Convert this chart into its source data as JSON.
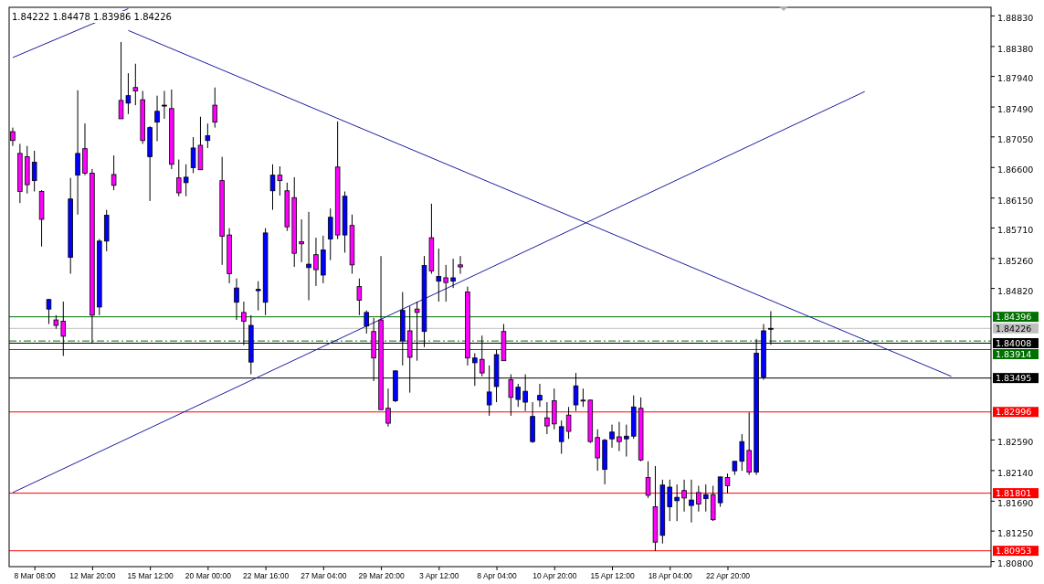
{
  "chart_data": {
    "type": "candlestick",
    "annotations": [
      "1.84222 1.84478 1.83986 1.84226"
    ],
    "categories": [
      null,
      null,
      null,
      "8 Mar 08:00",
      null,
      null,
      null,
      null,
      null,
      null,
      null,
      "12 Mar 20:00",
      null,
      null,
      null,
      null,
      null,
      null,
      null,
      "15 Mar 12:00",
      null,
      null,
      null,
      null,
      null,
      null,
      null,
      "20 Mar 00:00",
      null,
      null,
      null,
      null,
      null,
      null,
      null,
      "22 Mar 16:00",
      null,
      null,
      null,
      null,
      null,
      null,
      null,
      "27 Mar 04:00",
      null,
      null,
      null,
      null,
      null,
      null,
      null,
      "29 Mar 20:00",
      null,
      null,
      null,
      null,
      null,
      null,
      null,
      "3 Apr 12:00",
      null,
      null,
      null,
      null,
      null,
      null,
      null,
      "8 Apr 04:00",
      null,
      null,
      null,
      null,
      null,
      null,
      null,
      "10 Apr 20:00",
      null,
      null,
      null,
      null,
      null,
      null,
      null,
      "15 Apr 12:00",
      null,
      null,
      null,
      null,
      null,
      null,
      null,
      "18 Apr 04:00",
      null,
      null,
      null,
      null,
      null,
      null,
      null,
      "22 Apr 20:00",
      null,
      null,
      null,
      null,
      null,
      null,
      null,
      null,
      null,
      null,
      null,
      null,
      null,
      null,
      null,
      null,
      null,
      null,
      null,
      null,
      null,
      null,
      null,
      null,
      null,
      null,
      null,
      null,
      null,
      null,
      null,
      null,
      null,
      null,
      null,
      null
    ],
    "ylim": [
      1.8072,
      1.8895
    ],
    "yticks": [
      {
        "value": 1.8883,
        "label": "1.88830"
      },
      {
        "value": 1.8838,
        "label": "1.88380"
      },
      {
        "value": 1.8794,
        "label": "1.87940"
      },
      {
        "value": 1.8749,
        "label": "1.87490"
      },
      {
        "value": 1.8705,
        "label": "1.87050"
      },
      {
        "value": 1.866,
        "label": "1.86600"
      },
      {
        "value": 1.8615,
        "label": "1.86150"
      },
      {
        "value": 1.8571,
        "label": "1.85710"
      },
      {
        "value": 1.8526,
        "label": "1.85260"
      },
      {
        "value": 1.8482,
        "label": "1.84820"
      },
      {
        "value": 1.8259,
        "label": "1.82590"
      },
      {
        "value": 1.8214,
        "label": "1.82140"
      },
      {
        "value": 1.8169,
        "label": "1.81690"
      },
      {
        "value": 1.8125,
        "label": "1.81250"
      },
      {
        "value": 1.808,
        "label": "1.80800"
      }
    ],
    "ref_lines": [
      {
        "axis": "y",
        "value": 1.84396,
        "label": "1.84396",
        "color": "#007000"
      },
      {
        "axis": "y",
        "value": 1.84226,
        "label": "1.84226",
        "color": "#c0c0c0"
      },
      {
        "axis": "y",
        "value": 1.8404,
        "label": null,
        "color": "#007000",
        "line_style": "dashed"
      },
      {
        "axis": "y",
        "value": 1.84008,
        "label": "1.84008",
        "color": "#000000"
      },
      {
        "axis": "y",
        "value": 1.83914,
        "label": "1.83914",
        "color": "#007000"
      },
      {
        "axis": "y",
        "value": 1.83495,
        "label": "1.83495",
        "color": "#000000"
      },
      {
        "axis": "y",
        "value": 1.82996,
        "label": "1.82996",
        "color": "#ff0000"
      },
      {
        "axis": "y",
        "value": 1.81801,
        "label": "1.81801",
        "color": "#ff0000"
      },
      {
        "axis": "y",
        "value": 1.80953,
        "label": "1.80953",
        "color": "#ff0000"
      }
    ],
    "series": [
      {
        "type": "line",
        "color": "#1c1ca0",
        "values": [
          1.8821,
          null,
          null,
          null,
          null,
          null,
          null,
          null,
          null,
          null,
          null,
          null,
          null,
          null,
          null,
          null,
          1.8893,
          null,
          null,
          null,
          null,
          null,
          null,
          null,
          null,
          null,
          null,
          null,
          null,
          null,
          null,
          null,
          null,
          null,
          null,
          null,
          null,
          null,
          null,
          null,
          null,
          null,
          null,
          null,
          null,
          null,
          null,
          null,
          null,
          null,
          null,
          null,
          null,
          null,
          null,
          null,
          null,
          null,
          null,
          null,
          null,
          null,
          null,
          null,
          null,
          null,
          null,
          null,
          null,
          null,
          null,
          null,
          null,
          null,
          null,
          null,
          null,
          null,
          null,
          null,
          null,
          null,
          null,
          null,
          null,
          null,
          null,
          null,
          null,
          null,
          null,
          null,
          null,
          null,
          null,
          null,
          null,
          null,
          null,
          null,
          null,
          null,
          null,
          null,
          null,
          null,
          null,
          null,
          null,
          null,
          null,
          null,
          null,
          null,
          null,
          null,
          null,
          null,
          null,
          null,
          null,
          null,
          null,
          null,
          null,
          null,
          null,
          null,
          null,
          null,
          null,
          null,
          null,
          null,
          null,
          null
        ]
      },
      {
        "type": "line",
        "color": "#1c1ca0",
        "values": [
          null,
          null,
          null,
          null,
          null,
          null,
          null,
          null,
          null,
          null,
          null,
          null,
          null,
          null,
          null,
          null,
          1.8861,
          null,
          null,
          null,
          null,
          null,
          null,
          null,
          null,
          null,
          null,
          null,
          null,
          null,
          null,
          null,
          null,
          null,
          null,
          null,
          null,
          null,
          null,
          null,
          null,
          null,
          null,
          null,
          null,
          null,
          null,
          null,
          null,
          null,
          null,
          null,
          null,
          null,
          null,
          null,
          null,
          null,
          null,
          null,
          null,
          null,
          null,
          null,
          null,
          null,
          null,
          null,
          null,
          null,
          null,
          null,
          null,
          null,
          null,
          null,
          null,
          null,
          null,
          null,
          null,
          null,
          null,
          null,
          null,
          null,
          null,
          null,
          null,
          null,
          null,
          null,
          null,
          null,
          null,
          null,
          null,
          null,
          null,
          null,
          null,
          null,
          null,
          null,
          null,
          null,
          null,
          null,
          null,
          null,
          null,
          null,
          null,
          null,
          null,
          null,
          null,
          null,
          null,
          null,
          null,
          null,
          null,
          null,
          null,
          null,
          null,
          null,
          null,
          null,
          1.8352,
          null,
          null,
          null,
          null,
          null
        ]
      },
      {
        "type": "line",
        "color": "#1c1ca0",
        "values": [
          1.8181,
          null,
          null,
          null,
          null,
          null,
          null,
          null,
          null,
          null,
          null,
          null,
          null,
          null,
          null,
          null,
          null,
          null,
          null,
          null,
          null,
          null,
          null,
          null,
          null,
          null,
          null,
          null,
          null,
          null,
          null,
          null,
          null,
          null,
          null,
          null,
          null,
          null,
          null,
          null,
          null,
          null,
          null,
          null,
          null,
          null,
          null,
          null,
          null,
          null,
          null,
          null,
          null,
          null,
          null,
          null,
          null,
          null,
          null,
          null,
          null,
          null,
          null,
          null,
          null,
          null,
          null,
          null,
          null,
          null,
          null,
          null,
          null,
          null,
          null,
          null,
          null,
          null,
          null,
          null,
          null,
          null,
          null,
          null,
          null,
          null,
          null,
          null,
          null,
          null,
          null,
          null,
          null,
          null,
          null,
          null,
          null,
          null,
          null,
          null,
          null,
          null,
          null,
          null,
          null,
          null,
          null,
          null,
          null,
          null,
          null,
          null,
          null,
          null,
          null,
          null,
          null,
          null,
          1.8771,
          null,
          null,
          null,
          null,
          null,
          null,
          null,
          null,
          null,
          null,
          null,
          null,
          null,
          null,
          null,
          null,
          null
        ]
      }
    ],
    "ohlc": [
      [
        1.8712,
        1.8718,
        1.8691,
        1.8699
      ],
      [
        1.868,
        1.8694,
        1.8607,
        1.8624
      ],
      [
        1.8675,
        1.8691,
        1.8621,
        1.8634
      ],
      [
        1.864,
        1.8684,
        1.8624,
        1.8667
      ],
      [
        1.8624,
        1.8626,
        1.8543,
        1.8583
      ],
      [
        1.8451,
        1.8466,
        1.8429,
        1.8465
      ],
      [
        1.8435,
        1.8442,
        1.8422,
        1.8427
      ],
      [
        1.8433,
        1.8462,
        1.8382,
        1.8411
      ],
      [
        1.8527,
        1.8644,
        1.8503,
        1.8613
      ],
      [
        1.8648,
        1.8773,
        1.859,
        1.868
      ],
      [
        1.8687,
        1.8724,
        1.8648,
        1.8651
      ],
      [
        1.8651,
        1.8657,
        1.84,
        1.8442
      ],
      [
        1.8454,
        1.8554,
        1.8442,
        1.8551
      ],
      [
        1.8551,
        1.8597,
        1.8536,
        1.8589
      ],
      [
        1.8649,
        1.8677,
        1.8626,
        1.8633
      ],
      [
        1.8758,
        1.8844,
        1.8731,
        1.8731
      ],
      [
        1.8754,
        1.8798,
        1.8738,
        1.8765
      ],
      [
        1.8777,
        1.8812,
        1.8751,
        1.8772
      ],
      [
        1.8759,
        1.8772,
        1.8694,
        1.8699
      ],
      [
        1.8675,
        1.872,
        1.861,
        1.8718
      ],
      [
        1.8726,
        1.8765,
        1.8698,
        1.8742
      ],
      [
        1.875,
        1.8772,
        1.8731,
        1.8751
      ],
      [
        1.8746,
        1.8774,
        1.8657,
        1.8664
      ],
      [
        1.8644,
        1.8671,
        1.8617,
        1.8622
      ],
      [
        1.8637,
        1.8664,
        1.8617,
        1.8645
      ],
      [
        1.8659,
        1.8704,
        1.8651,
        1.8688
      ],
      [
        1.8692,
        1.8734,
        1.8656,
        1.8656
      ],
      [
        1.8699,
        1.8724,
        1.8688,
        1.8706
      ],
      [
        1.8751,
        1.8777,
        1.8718,
        1.8726
      ],
      [
        1.864,
        1.8675,
        1.8516,
        1.8558
      ],
      [
        1.856,
        1.857,
        1.8489,
        1.8503
      ],
      [
        1.8461,
        1.8496,
        1.8435,
        1.8482
      ],
      [
        1.8446,
        1.8462,
        1.8398,
        1.8433
      ],
      [
        1.8373,
        1.8442,
        1.8355,
        1.8427
      ],
      [
        1.8478,
        1.8492,
        1.8449,
        1.848
      ],
      [
        1.8461,
        1.857,
        1.8442,
        1.8563
      ],
      [
        1.8625,
        1.8664,
        1.8597,
        1.8648
      ],
      [
        1.8648,
        1.8661,
        1.8618,
        1.864
      ],
      [
        1.8625,
        1.8637,
        1.8566,
        1.8572
      ],
      [
        1.8615,
        1.8645,
        1.8513,
        1.8533
      ],
      [
        1.855,
        1.8583,
        1.852,
        1.8547
      ],
      [
        1.8512,
        1.8594,
        1.8464,
        1.8517
      ],
      [
        1.8531,
        1.8556,
        1.8485,
        1.8509
      ],
      [
        1.8501,
        1.8559,
        1.8489,
        1.8538
      ],
      [
        1.8554,
        1.8599,
        1.8523,
        1.8586
      ],
      [
        1.866,
        1.8727,
        1.8554,
        1.856
      ],
      [
        1.856,
        1.8624,
        1.8534,
        1.8617
      ],
      [
        1.8574,
        1.859,
        1.8503,
        1.8516
      ],
      [
        1.8484,
        1.8496,
        1.8442,
        1.8464
      ],
      [
        1.8426,
        1.8449,
        1.8415,
        1.8446
      ],
      [
        1.8418,
        1.8438,
        1.8345,
        1.8379
      ],
      [
        1.8435,
        1.8529,
        1.8303,
        1.8303
      ],
      [
        1.8305,
        1.8334,
        1.8278,
        1.8283
      ],
      [
        1.8316,
        1.8361,
        1.8314,
        1.836
      ],
      [
        1.8404,
        1.8476,
        1.8368,
        1.8449
      ],
      [
        1.8419,
        1.8455,
        1.8328,
        1.838
      ],
      [
        1.8451,
        1.8462,
        1.8375,
        1.8446
      ],
      [
        1.8418,
        1.8529,
        1.8395,
        1.8515
      ],
      [
        1.8556,
        1.8606,
        1.8503,
        1.8507
      ],
      [
        1.8492,
        1.854,
        1.8462,
        1.8499
      ],
      [
        1.8497,
        1.8516,
        1.8462,
        1.849
      ],
      [
        1.8492,
        1.8525,
        1.8482,
        1.8497
      ],
      [
        1.8516,
        1.8529,
        1.8503,
        1.8513
      ],
      [
        1.8476,
        1.8484,
        1.8368,
        1.8379
      ],
      [
        1.8372,
        1.8386,
        1.8338,
        1.8379
      ],
      [
        1.8377,
        1.8412,
        1.8352,
        1.8357
      ],
      [
        1.831,
        1.8368,
        1.8294,
        1.8329
      ],
      [
        1.8337,
        1.8391,
        1.8314,
        1.8384
      ],
      [
        1.8418,
        1.8429,
        1.8375,
        1.8375
      ],
      [
        1.8347,
        1.8355,
        1.8294,
        1.8321
      ],
      [
        1.8318,
        1.8341,
        1.8307,
        1.8336
      ],
      [
        1.8314,
        1.8355,
        1.8301,
        1.833
      ],
      [
        1.8256,
        1.8314,
        1.8254,
        1.8293
      ],
      [
        1.8317,
        1.8341,
        1.8307,
        1.8324
      ],
      [
        1.8291,
        1.8314,
        1.8267,
        1.8279
      ],
      [
        1.8316,
        1.8334,
        1.8274,
        1.8282
      ],
      [
        1.8256,
        1.8287,
        1.8238,
        1.8278
      ],
      [
        1.8295,
        1.8307,
        1.826,
        1.8271
      ],
      [
        1.831,
        1.8357,
        1.8301,
        1.8338
      ],
      [
        1.8317,
        1.8334,
        1.8307,
        1.8316
      ],
      [
        1.8317,
        1.8318,
        1.8254,
        1.8256
      ],
      [
        1.8262,
        1.8274,
        1.8213,
        1.8232
      ],
      [
        1.8215,
        1.826,
        1.8193,
        1.8258
      ],
      [
        1.826,
        1.8281,
        1.8247,
        1.827
      ],
      [
        1.8263,
        1.8285,
        1.8242,
        1.8256
      ],
      [
        1.826,
        1.8281,
        1.8234,
        1.8264
      ],
      [
        1.8264,
        1.8324,
        1.826,
        1.8307
      ],
      [
        1.8305,
        1.8321,
        1.8227,
        1.8229
      ],
      [
        1.8203,
        1.8227,
        1.8173,
        1.8177
      ],
      [
        1.816,
        1.822,
        1.8095,
        1.8108
      ],
      [
        1.8118,
        1.82,
        1.8106,
        1.8192
      ],
      [
        1.816,
        1.82,
        1.8139,
        1.8189
      ],
      [
        1.8169,
        1.8193,
        1.8139,
        1.8174
      ],
      [
        1.8184,
        1.82,
        1.8153,
        1.8173
      ],
      [
        1.8162,
        1.82,
        1.8137,
        1.817
      ],
      [
        1.8181,
        1.8191,
        1.8153,
        1.8164
      ],
      [
        1.8172,
        1.8193,
        1.8153,
        1.8178
      ],
      [
        1.8178,
        1.8191,
        1.8139,
        1.8141
      ],
      [
        1.8166,
        1.8204,
        1.816,
        1.8204
      ],
      [
        1.8203,
        1.8209,
        1.818,
        1.8191
      ],
      [
        1.8213,
        1.8227,
        1.8207,
        1.8227
      ],
      [
        1.8227,
        1.8267,
        1.8213,
        1.8256
      ],
      [
        1.8243,
        1.8299,
        1.8207,
        1.8211
      ],
      [
        1.8211,
        1.8407,
        1.8207,
        1.8386
      ],
      [
        1.8351,
        1.8429,
        1.8347,
        1.8419
      ],
      [
        1.84222,
        1.84478,
        1.83986,
        1.84226
      ],
      null,
      null,
      null,
      null,
      null,
      null,
      null,
      null,
      null,
      null,
      null,
      null,
      null,
      null,
      null,
      null,
      null,
      null,
      null,
      null,
      null,
      null,
      null,
      null,
      null,
      null,
      null,
      null,
      null,
      null
    ],
    "colors": [
      "#ff00ff",
      "#ff00ff",
      "#ff00ff",
      "#0000ff",
      "#ff00ff",
      "#0000ff",
      "#ff00ff",
      "#ff00ff",
      "#0000ff",
      "#0000ff",
      "#ff00ff",
      "#ff00ff",
      "#0000ff",
      "#0000ff",
      "#ff00ff",
      "#ff00ff",
      "#0000ff",
      "#ff00ff",
      "#ff00ff",
      "#0000ff",
      "#0000ff",
      "#0000ff",
      "#ff00ff",
      "#ff00ff",
      "#0000ff",
      "#0000ff",
      "#ff00ff",
      "#0000ff",
      "#ff00ff",
      "#ff00ff",
      "#ff00ff",
      "#0000ff",
      "#ff00ff",
      "#0000ff",
      "#0000ff",
      "#0000ff",
      "#0000ff",
      "#ff00ff",
      "#ff00ff",
      "#ff00ff",
      "#ff00ff",
      "#0000ff",
      "#ff00ff",
      "#0000ff",
      "#0000ff",
      "#ff00ff",
      "#0000ff",
      "#ff00ff",
      "#ff00ff",
      "#0000ff",
      "#ff00ff",
      "#ff00ff",
      "#ff00ff",
      "#0000ff",
      "#0000ff",
      "#ff00ff",
      "#ff00ff",
      "#0000ff",
      "#ff00ff",
      "#0000ff",
      "#ff00ff",
      "#0000ff",
      "#ff00ff",
      "#ff00ff",
      "#0000ff",
      "#ff00ff",
      "#0000ff",
      "#0000ff",
      "#ff00ff",
      "#ff00ff",
      "#0000ff",
      "#0000ff",
      "#0000ff",
      "#0000ff",
      "#ff00ff",
      "#ff00ff",
      "#0000ff",
      "#ff00ff",
      "#0000ff",
      "#ff00ff",
      "#ff00ff",
      "#ff00ff",
      "#0000ff",
      "#0000ff",
      "#ff00ff",
      "#0000ff",
      "#0000ff",
      "#ff00ff",
      "#ff00ff",
      "#ff00ff",
      "#0000ff",
      "#0000ff",
      "#0000ff",
      "#ff00ff",
      "#0000ff",
      "#ff00ff",
      "#0000ff",
      "#ff00ff",
      "#0000ff",
      "#ff00ff",
      "#0000ff",
      "#0000ff",
      "#ff00ff",
      "#0000ff",
      "#0000ff",
      "#0000ff",
      null,
      null,
      null,
      null,
      null,
      null,
      null,
      null,
      null,
      null,
      null,
      null,
      null,
      null,
      null,
      null,
      null,
      null,
      null,
      null,
      null,
      null,
      null,
      null,
      null,
      null,
      null,
      null,
      null,
      null
    ]
  }
}
